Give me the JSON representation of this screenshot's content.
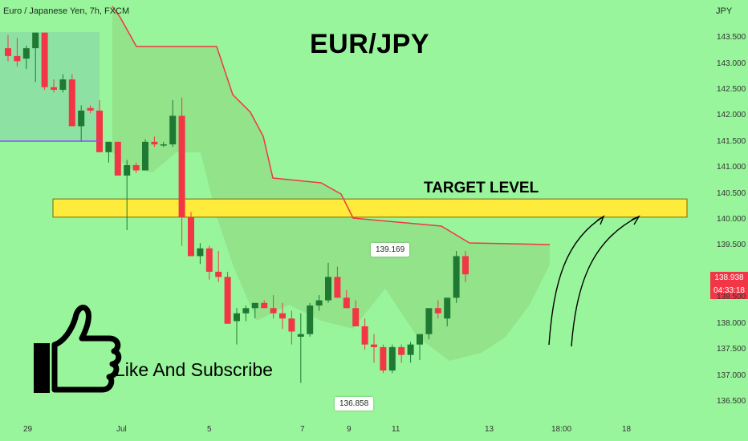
{
  "header": {
    "symbol": "Euro / Japanese Yen, 7h, FXCM",
    "currency": "JPY"
  },
  "overlay": {
    "title": "EUR/JPY",
    "target_label": "TARGET LEVEL",
    "cta": "Like And Subscribe"
  },
  "price_tag": {
    "price": "138.938",
    "countdown": "04:33:18"
  },
  "callouts": {
    "high": "139.169",
    "low": "136.858"
  },
  "colors": {
    "background": "#98f59b",
    "up": "#1e7a33",
    "down": "#f23645",
    "target_zone": "#ffeb3b",
    "stop_line": "#f23645"
  },
  "chart_data": {
    "type": "candlestick",
    "y_axis": {
      "ticks": [
        "143.500",
        "143.000",
        "142.500",
        "142.000",
        "141.500",
        "141.000",
        "140.500",
        "140.000",
        "139.500",
        "138.500",
        "138.000",
        "137.500",
        "137.000",
        "136.500"
      ],
      "range": [
        136.33,
        143.95
      ]
    },
    "x_axis": {
      "ticks": [
        "29",
        "Jul",
        "5",
        "7",
        "9",
        "11",
        "13",
        "18:00",
        "18"
      ]
    },
    "target_zone": [
      140.05,
      140.4
    ],
    "candles": [
      [
        143.3,
        143.55,
        143.05,
        143.15
      ],
      [
        143.15,
        143.5,
        142.95,
        143.05
      ],
      [
        143.1,
        143.35,
        142.9,
        143.3
      ],
      [
        143.3,
        143.6,
        142.65,
        143.6
      ],
      [
        143.6,
        143.6,
        142.5,
        142.55
      ],
      [
        142.55,
        142.7,
        142.45,
        142.5
      ],
      [
        142.5,
        142.8,
        142.45,
        142.7
      ],
      [
        142.7,
        142.8,
        141.8,
        141.8
      ],
      [
        141.8,
        142.2,
        141.5,
        142.1
      ],
      [
        142.15,
        142.2,
        142.05,
        142.1
      ],
      [
        142.1,
        142.3,
        141.3,
        141.3
      ],
      [
        141.3,
        141.5,
        141.1,
        141.5
      ],
      [
        141.5,
        141.5,
        140.9,
        140.85
      ],
      [
        140.85,
        141.15,
        139.8,
        141.05
      ],
      [
        141.05,
        141.1,
        140.9,
        140.95
      ],
      [
        140.95,
        141.55,
        140.95,
        141.5
      ],
      [
        141.5,
        141.6,
        141.4,
        141.45
      ],
      [
        141.45,
        141.5,
        141.4,
        141.45
      ],
      [
        141.45,
        142.3,
        141.4,
        142.0
      ],
      [
        142.0,
        142.35,
        139.5,
        140.05
      ],
      [
        140.05,
        140.15,
        139.3,
        139.3
      ],
      [
        139.3,
        139.55,
        139.15,
        139.45
      ],
      [
        139.45,
        139.5,
        138.85,
        139.0
      ],
      [
        139.0,
        139.4,
        138.8,
        138.9
      ],
      [
        138.9,
        139.0,
        138.0,
        138.0
      ],
      [
        138.05,
        138.3,
        137.6,
        138.2
      ],
      [
        138.2,
        138.35,
        138.05,
        138.3
      ],
      [
        138.3,
        138.4,
        138.1,
        138.4
      ],
      [
        138.4,
        138.45,
        138.3,
        138.3
      ],
      [
        138.3,
        138.55,
        138.1,
        138.2
      ],
      [
        138.2,
        138.4,
        137.9,
        138.1
      ],
      [
        138.1,
        138.25,
        137.6,
        137.85
      ],
      [
        137.75,
        138.2,
        136.86,
        137.8
      ],
      [
        137.8,
        138.4,
        137.75,
        138.35
      ],
      [
        138.35,
        138.55,
        138.25,
        138.45
      ],
      [
        138.45,
        139.17,
        138.4,
        138.9
      ],
      [
        138.9,
        139.1,
        138.5,
        138.5
      ],
      [
        138.5,
        138.65,
        138.3,
        138.3
      ],
      [
        138.3,
        138.45,
        137.95,
        137.95
      ],
      [
        137.95,
        138.1,
        137.5,
        137.6
      ],
      [
        137.6,
        137.8,
        137.25,
        137.55
      ],
      [
        137.55,
        137.6,
        137.05,
        137.1
      ],
      [
        137.1,
        137.6,
        137.05,
        137.55
      ],
      [
        137.55,
        137.6,
        137.25,
        137.4
      ],
      [
        137.4,
        137.65,
        137.25,
        137.6
      ],
      [
        137.6,
        137.8,
        137.3,
        137.8
      ],
      [
        137.8,
        138.3,
        137.7,
        138.3
      ],
      [
        138.3,
        138.45,
        138.1,
        138.2
      ],
      [
        138.1,
        138.5,
        137.95,
        138.5
      ],
      [
        138.5,
        139.4,
        138.4,
        139.3
      ],
      [
        139.3,
        139.4,
        138.8,
        138.95
      ]
    ],
    "stop_line": [
      [
        0,
        "na"
      ],
      [
        10,
        143.65
      ],
      [
        11,
        143.45
      ],
      [
        12,
        143.0
      ],
      [
        13,
        143.0
      ],
      [
        18,
        143.0
      ],
      [
        19,
        142.6
      ],
      [
        20,
        142.0
      ],
      [
        23,
        141.5
      ],
      [
        24,
        140.7
      ],
      [
        27,
        140.65
      ],
      [
        30,
        140.6
      ],
      [
        31,
        140.55
      ],
      [
        33,
        140.55
      ],
      [
        34,
        140.35
      ],
      [
        35,
        139.95
      ],
      [
        40,
        139.95
      ],
      [
        41,
        139.7
      ],
      [
        42,
        139.6
      ],
      [
        47,
        139.6
      ]
    ]
  }
}
